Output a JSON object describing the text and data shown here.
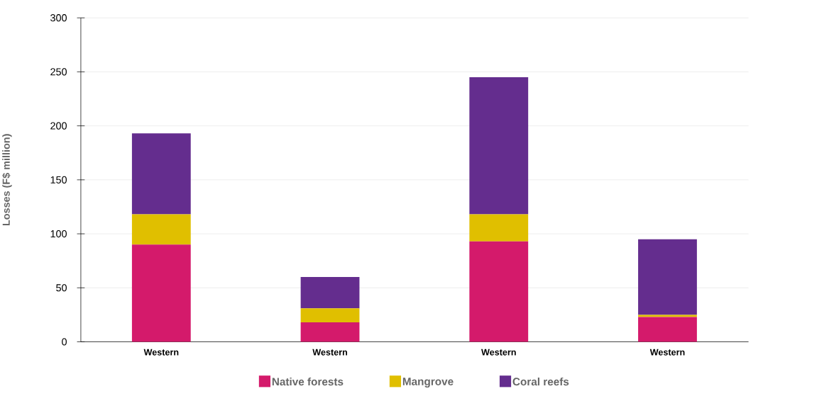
{
  "chart_data": {
    "type": "bar",
    "stacked": true,
    "ylabel": "Losses (F$ million)",
    "categories": [
      "Western",
      "Western",
      "Western",
      "Western"
    ],
    "series": [
      {
        "name": "Native forests",
        "color": "#d41a6b",
        "values": [
          90,
          18,
          93,
          23
        ]
      },
      {
        "name": "Mangrove",
        "color": "#e0bf00",
        "values": [
          28,
          13,
          25,
          2
        ]
      },
      {
        "name": "Coral reefs",
        "color": "#642d8e",
        "values": [
          75,
          29,
          127,
          70
        ]
      }
    ],
    "ylim": [
      0,
      300
    ],
    "yticks": [
      0,
      50,
      100,
      150,
      200,
      250,
      300
    ],
    "grid": "y",
    "legend": "bottom"
  }
}
